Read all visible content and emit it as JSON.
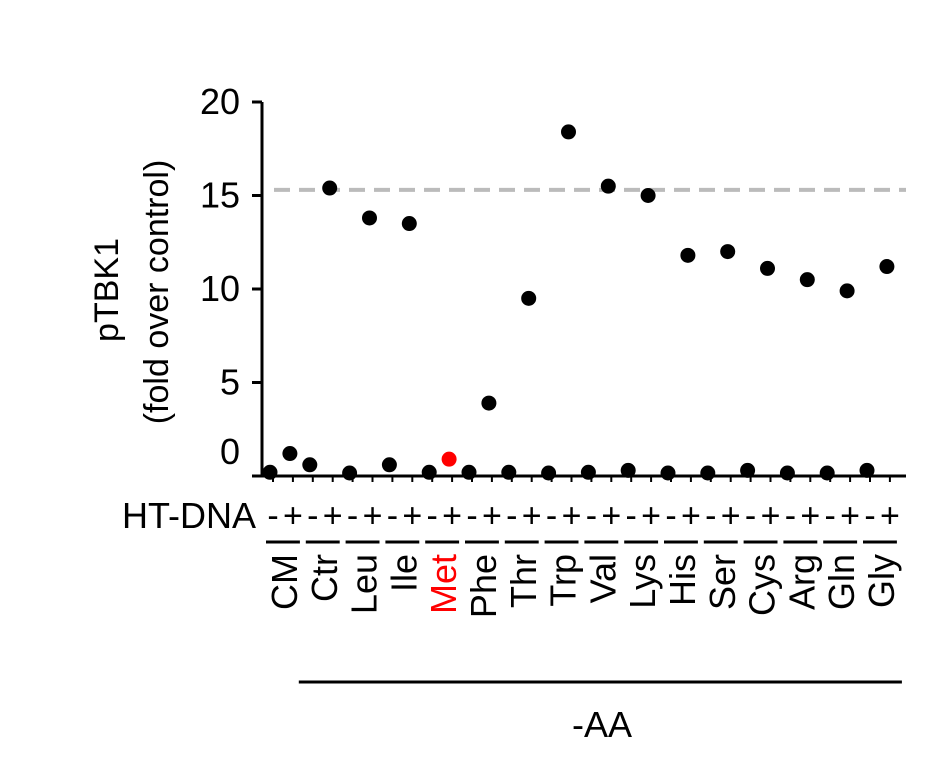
{
  "chart_data": {
    "type": "scatter",
    "title": "",
    "ylabel": "pTBK1",
    "ylabel_line2": "(fold over control)",
    "ylim": [
      0,
      20
    ],
    "yticks": [
      "20",
      "15",
      "10",
      "5",
      "0"
    ],
    "reference_line": {
      "y": 15.3,
      "style": "dashed",
      "color": "#bbbbbb"
    },
    "ht_dna_label": "HT-DNA",
    "ht_dna_signs": [
      "-",
      "+",
      "-",
      "+",
      "-",
      "+",
      "-",
      "+",
      "-",
      "+",
      "-",
      "+",
      "-",
      "+",
      "-",
      "+",
      "-",
      "+",
      "-",
      "+",
      "-",
      "+",
      "-",
      "+",
      "-",
      "+",
      "-",
      "+",
      "-",
      "+",
      "-",
      "+"
    ],
    "categories": [
      "CM",
      "Ctr",
      "Leu",
      "Ile",
      "Met",
      "Phe",
      "Thr",
      "Trp",
      "Val",
      "Lys",
      "His",
      "Ser",
      "Cys",
      "Arg",
      "Gln",
      "Gly"
    ],
    "highlight_category": "Met",
    "highlight_color": "#ff0000",
    "group_label": "-AA",
    "series": [
      {
        "values": [
          [
            0.2,
            1.2
          ],
          [
            0.6,
            15.4
          ],
          [
            0.0,
            13.8
          ],
          [
            0.6,
            13.5
          ],
          [
            0.2,
            0.9
          ],
          [
            0.2,
            3.9
          ],
          [
            0.2,
            9.5
          ],
          [
            0.0,
            18.4
          ],
          [
            0.2,
            15.5
          ],
          [
            0.3,
            15.0
          ],
          [
            0.0,
            11.8
          ],
          [
            0.0,
            12.0
          ],
          [
            0.3,
            11.1
          ],
          [
            0.0,
            10.5
          ],
          [
            0.1,
            9.9
          ],
          [
            0.3,
            11.2
          ]
        ]
      }
    ],
    "point_color": "#000000"
  }
}
